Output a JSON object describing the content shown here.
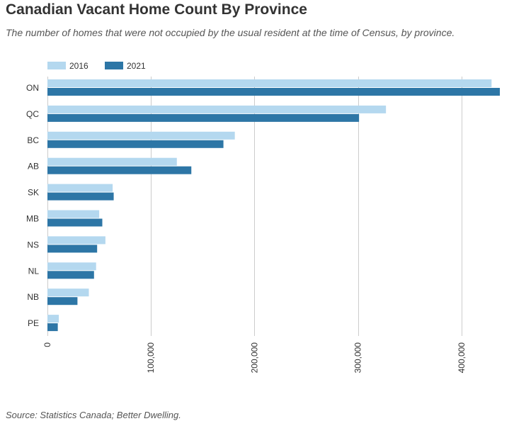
{
  "page": {
    "title": "Canadian Vacant Home Count By Province",
    "subtitle": "The number of homes that were not occupied by the usual resident at the time of Census, by province.",
    "source": "Source: Statistics Canada; Better Dwelling."
  },
  "colors": {
    "series_2016": "#b4d8ef",
    "series_2021": "#2d76a6",
    "grid": "#cccccc"
  },
  "chart_data": {
    "type": "bar",
    "orientation": "horizontal",
    "title": "Canadian Vacant Home Count By Province",
    "subtitle": "The number of homes that were not occupied by the usual resident at the time of Census, by province.",
    "categories": [
      "ON",
      "QC",
      "BC",
      "AB",
      "SK",
      "MB",
      "NS",
      "NL",
      "NB",
      "PE"
    ],
    "series": [
      {
        "name": "2016",
        "values": [
          429000,
          327000,
          181000,
          125000,
          63000,
          50000,
          56000,
          47000,
          40000,
          11000
        ]
      },
      {
        "name": "2021",
        "values": [
          437000,
          301000,
          170000,
          139000,
          64000,
          53000,
          48000,
          45000,
          29000,
          10000
        ]
      }
    ],
    "xlim": [
      0,
      437000
    ],
    "xticks": [
      0,
      100000,
      200000,
      300000,
      400000
    ],
    "xtick_labels": [
      "0",
      "100,000",
      "200,000",
      "300,000",
      "400,000"
    ],
    "xlabel": "",
    "ylabel": "",
    "legend": {
      "position": "top-left",
      "entries": [
        "2016",
        "2021"
      ]
    },
    "grid": true
  }
}
